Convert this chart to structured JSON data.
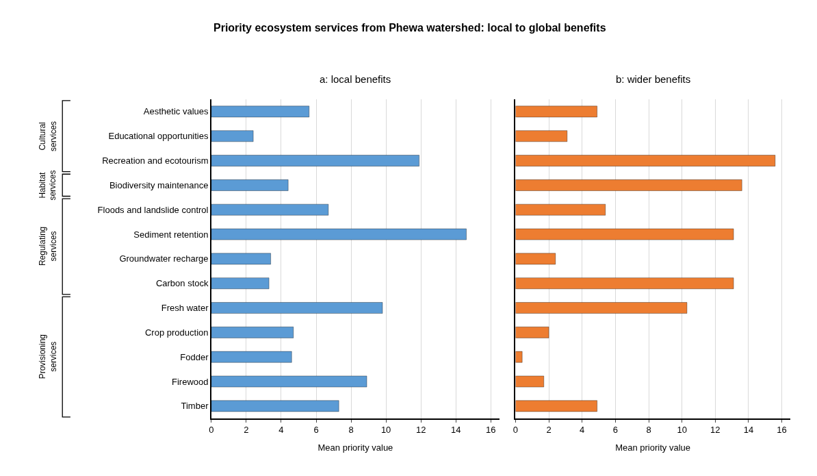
{
  "chart_data": [
    {
      "type": "bar",
      "orientation": "horizontal",
      "title": "a: local benefits",
      "xlabel": "Mean priority value",
      "categories": [
        "Aesthetic values",
        "Educational opportunities",
        "Recreation and ecotourism",
        "Biodiversity maintenance",
        "Floods and landslide control",
        "Sediment retention",
        "Groundwater recharge",
        "Carbon stock",
        "Fresh water",
        "Crop production",
        "Fodder",
        "Firewood",
        "Timber"
      ],
      "values": [
        5.6,
        2.4,
        11.9,
        4.4,
        6.7,
        14.6,
        3.4,
        3.3,
        9.8,
        4.7,
        4.6,
        8.9,
        7.3
      ],
      "color": "#5b9bd5",
      "xlim": [
        0,
        16.5
      ],
      "xticks": [
        0,
        2,
        4,
        6,
        8,
        10,
        12,
        14,
        16
      ],
      "grid": "x",
      "annotations": [
        "Priority ecosystem services from Phewa watershed: local to global benefits",
        "Cultural services",
        "Habitat services",
        "Regulating services",
        "Provisioning services"
      ]
    },
    {
      "type": "bar",
      "orientation": "horizontal",
      "title": "b: wider benefits",
      "xlabel": "Mean priority value",
      "categories": [
        null,
        null,
        null,
        null,
        null,
        null,
        null,
        null,
        null,
        null,
        null,
        null,
        null
      ],
      "values": [
        4.9,
        3.1,
        15.6,
        13.6,
        5.4,
        13.1,
        2.4,
        13.1,
        10.3,
        2.0,
        0.4,
        1.7,
        4.9
      ],
      "color": "#ed7d31",
      "xlim": [
        0,
        16.5
      ],
      "xticks": [
        0,
        2,
        4,
        6,
        8,
        10,
        12,
        14,
        16
      ],
      "grid": "x",
      "tick_labels": "x"
    }
  ]
}
